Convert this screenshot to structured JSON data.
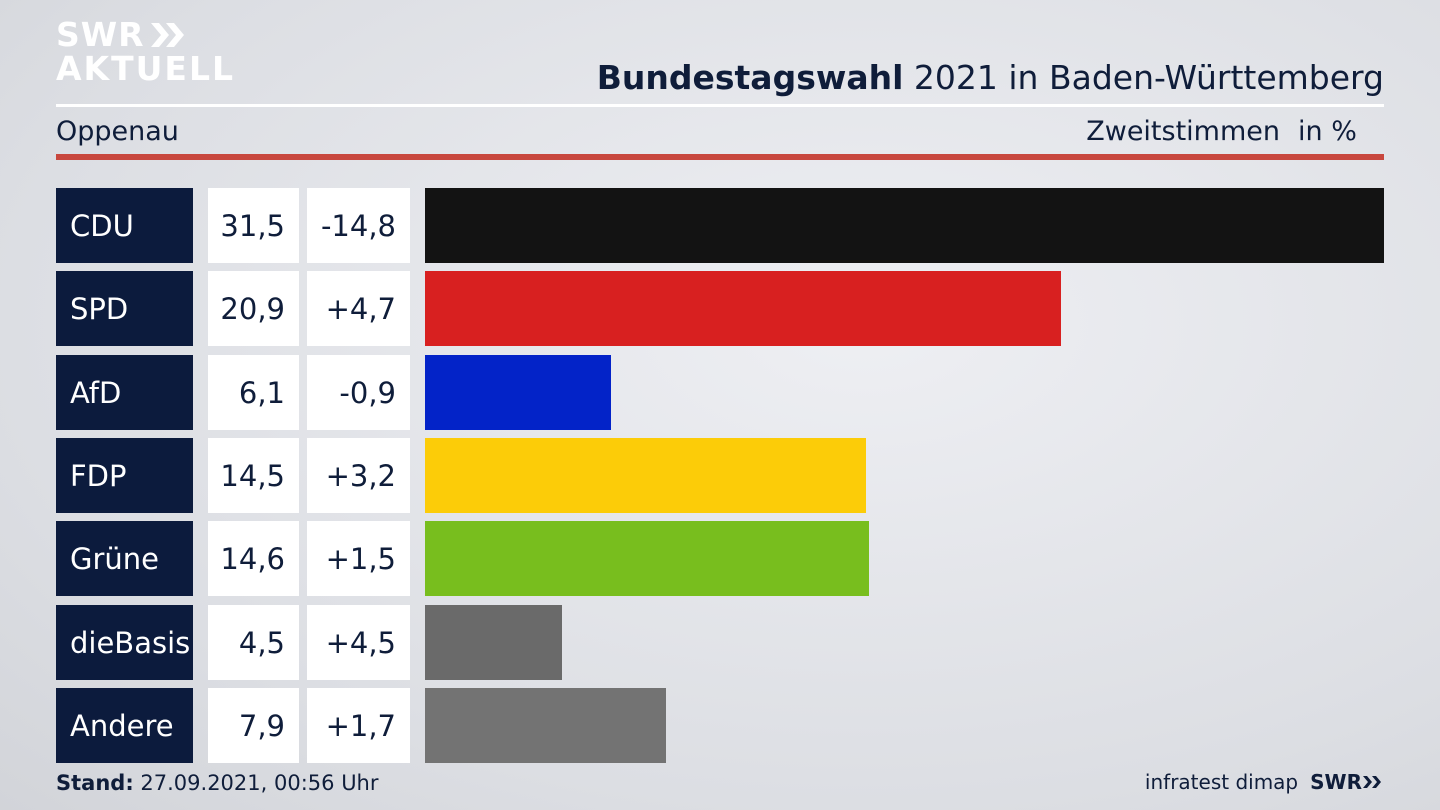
{
  "brand": {
    "logo_line1": "SWR",
    "logo_line2": "AKTUELL",
    "logo_icon": "double-chevron-right-icon"
  },
  "header": {
    "title_bold": "Bundestagswahl",
    "title_rest": "2021 in Baden-Württemberg",
    "district": "Oppenau",
    "vote_type": "Zweitstimmen",
    "unit": "in %"
  },
  "colors": {
    "accent_line": "#c8473e",
    "party_label_bg": "#0c1b3d"
  },
  "chart_data": {
    "type": "bar",
    "orientation": "horizontal",
    "categories": [
      "CDU",
      "SPD",
      "AfD",
      "FDP",
      "Grüne",
      "dieBasis",
      "Andere"
    ],
    "values": [
      31.5,
      20.9,
      6.1,
      14.5,
      14.6,
      4.5,
      7.9
    ],
    "value_labels": [
      "31,5",
      "20,9",
      "6,1",
      "14,5",
      "14,6",
      "4,5",
      "7,9"
    ],
    "change_labels": [
      "-14,8",
      "+4,7",
      "-0,9",
      "+3,2",
      "+1,5",
      "+4,5",
      "+1,7"
    ],
    "colors": [
      "#131313",
      "#d82020",
      "#0323c8",
      "#fccc08",
      "#78be1e",
      "#6a6a6a",
      "#737373"
    ],
    "xlim": [
      0,
      31.5
    ]
  },
  "footer": {
    "stand_label": "Stand:",
    "stand_value": "27.09.2021, 00:56 Uhr",
    "source": "infratest dimap",
    "brand": "SWR"
  }
}
